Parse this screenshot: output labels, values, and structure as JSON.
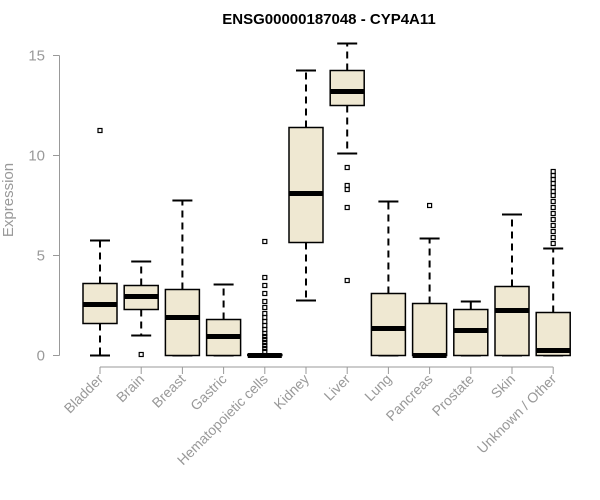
{
  "chart_data": {
    "type": "boxplot",
    "title": "ENSG00000187048 - CYP4A11",
    "xlabel": "",
    "ylabel": "Expression",
    "ylim": [
      0,
      15.8
    ],
    "yticks": [
      0,
      5,
      10,
      15
    ],
    "box_fill": "#efe8d2",
    "categories": [
      "Bladder",
      "Brain",
      "Breast",
      "Gastric",
      "Hematopoietic cells",
      "Kidney",
      "Liver",
      "Lung",
      "Pancreas",
      "Prostate",
      "Skin",
      "Unknown / Other"
    ],
    "boxes": [
      {
        "name": "Bladder",
        "whisker_low": 0,
        "q1": 1.6,
        "median": 2.55,
        "q3": 3.6,
        "whisker_high": 5.75,
        "outliers": [
          11.25
        ]
      },
      {
        "name": "Brain",
        "whisker_low": 1.0,
        "q1": 2.3,
        "median": 2.95,
        "q3": 3.5,
        "whisker_high": 4.7,
        "outliers": [
          0.05
        ]
      },
      {
        "name": "Breast",
        "whisker_low": 0,
        "q1": 0,
        "median": 1.9,
        "q3": 3.3,
        "whisker_high": 7.75,
        "outliers": []
      },
      {
        "name": "Gastric",
        "whisker_low": 0,
        "q1": 0,
        "median": 0.95,
        "q3": 1.8,
        "whisker_high": 3.55,
        "outliers": []
      },
      {
        "name": "Hematopoietic cells",
        "whisker_low": 0,
        "q1": 0,
        "median": 0,
        "q3": 0.05,
        "whisker_high": 0.05,
        "outliers": [
          0.2,
          0.35,
          0.5,
          0.65,
          0.8,
          0.95,
          1.1,
          1.3,
          1.5,
          1.7,
          1.9,
          2.1,
          2.4,
          2.7,
          3.1,
          3.5,
          3.9,
          5.7
        ]
      },
      {
        "name": "Kidney",
        "whisker_low": 2.75,
        "q1": 5.65,
        "median": 8.1,
        "q3": 11.4,
        "whisker_high": 14.25,
        "outliers": []
      },
      {
        "name": "Liver",
        "whisker_low": 10.1,
        "q1": 12.5,
        "median": 13.2,
        "q3": 14.25,
        "whisker_high": 15.6,
        "outliers": [
          9.4,
          8.5,
          8.3,
          7.4,
          3.75
        ]
      },
      {
        "name": "Lung",
        "whisker_low": 0,
        "q1": 0,
        "median": 1.35,
        "q3": 3.1,
        "whisker_high": 7.7,
        "outliers": []
      },
      {
        "name": "Pancreas",
        "whisker_low": 0,
        "q1": 0,
        "median": 0,
        "q3": 2.6,
        "whisker_high": 5.85,
        "outliers": [
          7.5
        ]
      },
      {
        "name": "Prostate",
        "whisker_low": 0,
        "q1": 0,
        "median": 1.25,
        "q3": 2.3,
        "whisker_high": 2.7,
        "outliers": []
      },
      {
        "name": "Skin",
        "whisker_low": 0,
        "q1": 0,
        "median": 2.25,
        "q3": 3.45,
        "whisker_high": 7.05,
        "outliers": []
      },
      {
        "name": "Unknown / Other",
        "whisker_low": 0,
        "q1": 0,
        "median": 0.25,
        "q3": 2.15,
        "whisker_high": 5.35,
        "outliers": [
          5.6,
          5.9,
          6.2,
          6.5,
          6.8,
          7.1,
          7.4,
          7.7,
          8.0,
          8.2,
          8.4,
          8.6,
          8.8,
          9.0,
          9.2
        ]
      }
    ]
  }
}
